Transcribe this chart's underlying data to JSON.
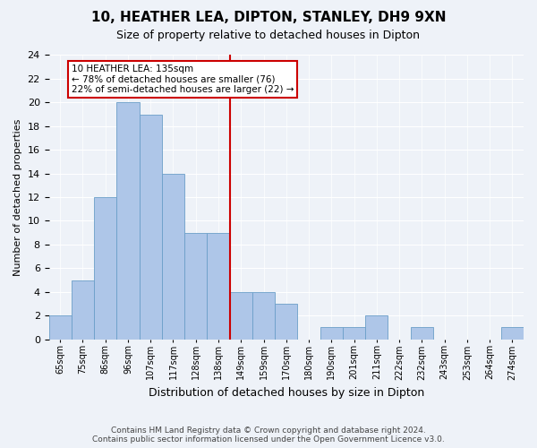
{
  "title": "10, HEATHER LEA, DIPTON, STANLEY, DH9 9XN",
  "subtitle": "Size of property relative to detached houses in Dipton",
  "xlabel": "Distribution of detached houses by size in Dipton",
  "ylabel": "Number of detached properties",
  "bin_labels": [
    "65sqm",
    "75sqm",
    "86sqm",
    "96sqm",
    "107sqm",
    "117sqm",
    "128sqm",
    "138sqm",
    "149sqm",
    "159sqm",
    "170sqm",
    "180sqm",
    "190sqm",
    "201sqm",
    "211sqm",
    "222sqm",
    "232sqm",
    "243sqm",
    "253sqm",
    "264sqm",
    "274sqm"
  ],
  "values": [
    2,
    5,
    12,
    20,
    19,
    14,
    9,
    9,
    4,
    4,
    3,
    0,
    1,
    1,
    2,
    0,
    1,
    0,
    0,
    0,
    1
  ],
  "bar_color": "#aec6e8",
  "bar_edge_color": "#6b9fc8",
  "reference_line_index": 7.5,
  "annotation_text": "10 HEATHER LEA: 135sqm\n← 78% of detached houses are smaller (76)\n22% of semi-detached houses are larger (22) →",
  "annotation_box_color": "#ffffff",
  "annotation_box_edge_color": "#cc0000",
  "vline_color": "#cc0000",
  "ylim": [
    0,
    24
  ],
  "yticks": [
    0,
    2,
    4,
    6,
    8,
    10,
    12,
    14,
    16,
    18,
    20,
    22,
    24
  ],
  "footer_line1": "Contains HM Land Registry data © Crown copyright and database right 2024.",
  "footer_line2": "Contains public sector information licensed under the Open Government Licence v3.0.",
  "bg_color": "#eef2f8",
  "plot_bg_color": "#eef2f8"
}
